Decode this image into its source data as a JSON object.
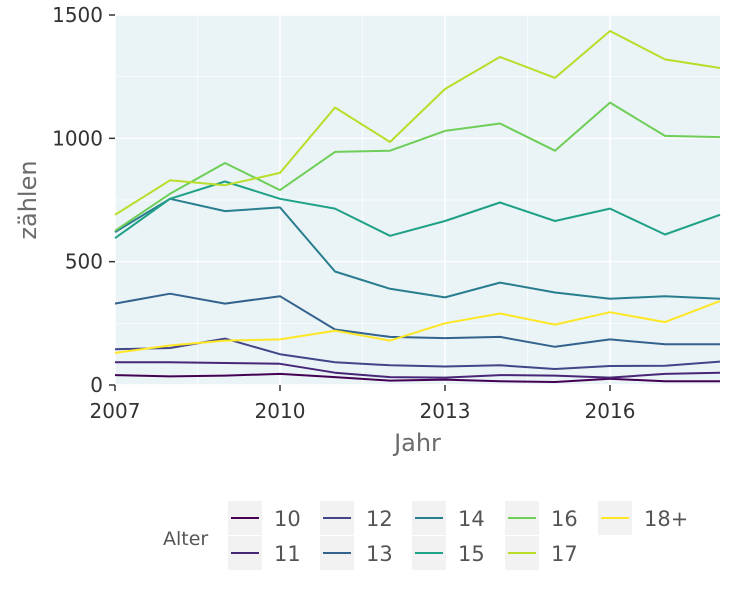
{
  "chart_data": {
    "type": "line",
    "title": "",
    "xlabel": "Jahr",
    "ylabel": "zählen",
    "xlim": [
      2007,
      2018
    ],
    "ylim": [
      0,
      1500
    ],
    "x_ticks": [
      2007,
      2010,
      2013,
      2016
    ],
    "y_ticks": [
      0,
      500,
      1000,
      1500
    ],
    "x_tick_labels": [
      "2007",
      "2010",
      "2013",
      "2016"
    ],
    "y_tick_labels": [
      "0",
      "500",
      "1000",
      "1500"
    ],
    "grid": true,
    "panel_background": "#eaf3f6",
    "x": [
      2007,
      2008,
      2009,
      2010,
      2011,
      2012,
      2013,
      2014,
      2015,
      2016,
      2017,
      2018
    ],
    "legend": {
      "title": "Alter",
      "position": "bottom"
    },
    "series": [
      {
        "name": "10",
        "color": "#440154",
        "values": [
          40,
          35,
          38,
          45,
          32,
          18,
          22,
          15,
          12,
          25,
          15,
          15
        ]
      },
      {
        "name": "11",
        "color": "#482677",
        "values": [
          92,
          92,
          89,
          86,
          50,
          32,
          30,
          40,
          38,
          30,
          45,
          50
        ]
      },
      {
        "name": "12",
        "color": "#404688",
        "values": [
          145,
          150,
          188,
          125,
          92,
          80,
          75,
          80,
          65,
          77,
          78,
          95
        ]
      },
      {
        "name": "13",
        "color": "#33638d",
        "values": [
          330,
          370,
          330,
          360,
          225,
          195,
          190,
          195,
          155,
          185,
          165,
          165
        ]
      },
      {
        "name": "14",
        "color": "#287d8e",
        "values": [
          620,
          755,
          705,
          720,
          460,
          390,
          355,
          415,
          375,
          350,
          360,
          350
        ]
      },
      {
        "name": "15",
        "color": "#1fa187",
        "values": [
          595,
          755,
          825,
          755,
          715,
          605,
          665,
          740,
          665,
          715,
          610,
          690
        ]
      },
      {
        "name": "16",
        "color": "#6ece58",
        "values": [
          625,
          775,
          900,
          790,
          945,
          950,
          1030,
          1060,
          950,
          1145,
          1010,
          1005
        ]
      },
      {
        "name": "17",
        "color": "#b8de29",
        "values": [
          690,
          830,
          810,
          860,
          1125,
          985,
          1200,
          1330,
          1245,
          1435,
          1320,
          1285
        ]
      },
      {
        "name": "18+",
        "color": "#fde725",
        "values": [
          130,
          160,
          180,
          185,
          220,
          180,
          250,
          290,
          245,
          295,
          255,
          340
        ]
      }
    ]
  }
}
